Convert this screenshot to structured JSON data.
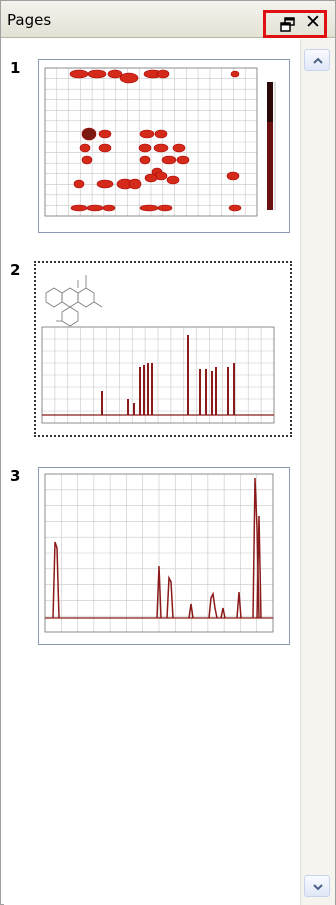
{
  "panel": {
    "title": "Pages",
    "float_icon": "float-window-icon",
    "close_icon": "close-icon",
    "close_glyph": "✕"
  },
  "pages": [
    {
      "number": "1",
      "kind": "2D contour spectrum (COSY-type)",
      "selected": false
    },
    {
      "number": "2",
      "kind": "structure + 1D spectrum",
      "selected": true
    },
    {
      "number": "3",
      "kind": "1D spectrum",
      "selected": false
    }
  ],
  "colors": {
    "frame": "#a0a0a0",
    "highlight": "#e01010",
    "spectrum": "#8b1a1a",
    "grid": "#c8c8c8"
  }
}
